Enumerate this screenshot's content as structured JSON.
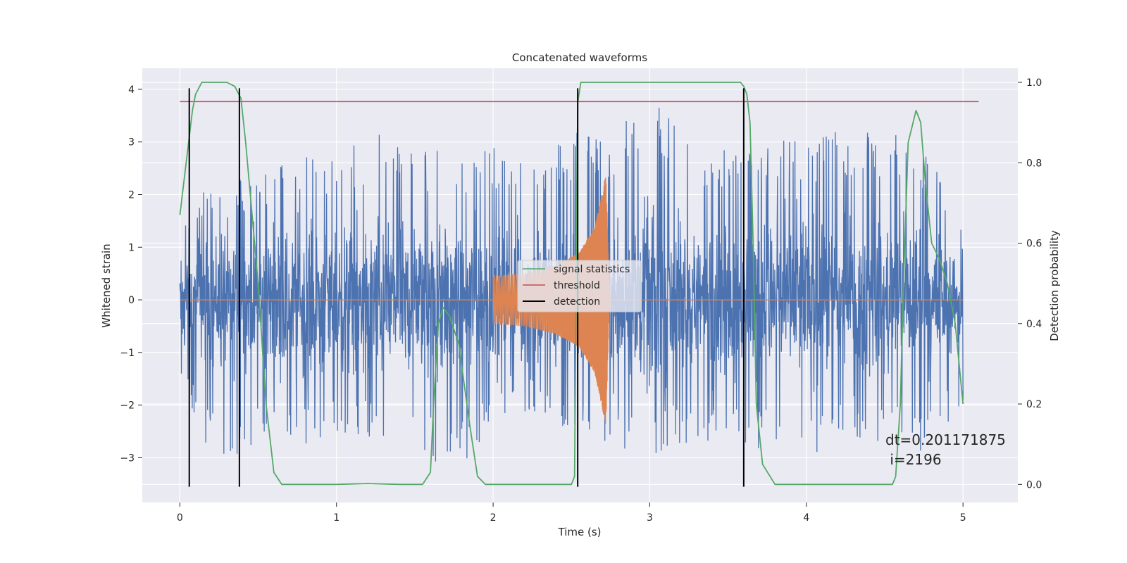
{
  "chart_data": {
    "type": "line",
    "title": "Concatenated waveforms",
    "xlabel": "Time (s)",
    "ylabel": "Whitened strain",
    "ylabel_right": "Detection probability",
    "xlim": [
      -0.24,
      5.35
    ],
    "ylim": [
      -3.85,
      4.4
    ],
    "ylim_right": [
      -0.045,
      1.035
    ],
    "x_ticks": [
      "0",
      "1",
      "2",
      "3",
      "4",
      "5"
    ],
    "y_ticks": [
      "4",
      "3",
      "2",
      "1",
      "0",
      "−1",
      "−2",
      "−3"
    ],
    "y_ticks_right": [
      "1.0",
      "0.8",
      "0.6",
      "0.4",
      "0.2",
      "0.0"
    ],
    "grid": true,
    "legend_position": "center",
    "legend": [
      {
        "label": "signal statistics",
        "color": "#55a868"
      },
      {
        "label": "threshold",
        "color": "#c44e52"
      },
      {
        "label": "detection",
        "color": "#000000"
      }
    ],
    "annotation": {
      "line1": "dt=0.201171875",
      "line2": " i=2196"
    },
    "colors": {
      "strain": "#4c72b0",
      "injection": "#dd8452",
      "statistic": "#55a868",
      "threshold": "#c44e52",
      "detection": "#000000",
      "plot_bg": "#eaeaf2",
      "grid": "#ffffff"
    },
    "series": [
      {
        "role": "strain",
        "axis": "left",
        "x_range": [
          0,
          5
        ],
        "envelope_x": [
          0,
          0.25,
          0.5,
          0.75,
          1.0,
          1.25,
          1.5,
          1.75,
          2.0,
          2.25,
          2.5,
          2.75,
          3.0,
          3.25,
          3.5,
          3.75,
          4.0,
          4.25,
          4.5,
          4.75,
          5.0
        ],
        "envelope_max": [
          1.5,
          2.4,
          2.3,
          3.0,
          2.7,
          3.3,
          3.0,
          2.8,
          3.0,
          2.8,
          3.2,
          3.0,
          4.0,
          3.0,
          2.9,
          3.0,
          3.2,
          3.2,
          3.2,
          3.0,
          1.3
        ],
        "envelope_min": [
          -1.6,
          -3.3,
          -2.9,
          -2.9,
          -2.6,
          -2.7,
          -2.7,
          -3.5,
          -2.3,
          -2.4,
          -2.4,
          -2.8,
          -3.1,
          -2.7,
          -2.7,
          -2.9,
          -3.3,
          -2.6,
          -2.8,
          -3.0,
          -2.0
        ]
      },
      {
        "role": "injection",
        "axis": "left",
        "x": [
          0,
          2.0,
          2.0,
          2.2,
          2.4,
          2.55,
          2.65,
          2.72,
          2.74,
          2.75,
          5.0
        ],
        "amplitude": [
          0,
          0,
          0.45,
          0.5,
          0.65,
          0.9,
          1.4,
          2.4,
          0.3,
          0,
          0
        ]
      },
      {
        "name": "signal statistics",
        "axis": "right",
        "x": [
          0,
          0.04,
          0.08,
          0.1,
          0.14,
          0.2,
          0.3,
          0.35,
          0.39,
          0.42,
          0.45,
          0.5,
          0.55,
          0.6,
          0.65,
          0.75,
          1.0,
          1.2,
          1.4,
          1.55,
          1.6,
          1.62,
          1.65,
          1.68,
          1.72,
          1.78,
          1.85,
          1.9,
          1.95,
          2.0,
          2.3,
          2.5,
          2.52,
          2.53,
          2.54,
          2.56,
          2.6,
          3.0,
          3.5,
          3.58,
          3.6,
          3.62,
          3.64,
          3.66,
          3.68,
          3.72,
          3.8,
          4.0,
          4.3,
          4.5,
          4.55,
          4.57,
          4.6,
          4.62,
          4.65,
          4.7,
          4.73,
          4.76,
          4.8,
          4.85,
          4.9,
          4.95,
          5.0
        ],
        "y": [
          0.67,
          0.8,
          0.93,
          0.97,
          1.0,
          1.0,
          1.0,
          0.99,
          0.96,
          0.85,
          0.72,
          0.5,
          0.2,
          0.03,
          0.0,
          0.0,
          0.0,
          0.002,
          0.0,
          0.0,
          0.03,
          0.2,
          0.4,
          0.44,
          0.42,
          0.35,
          0.15,
          0.02,
          0.0,
          0.0,
          0.0,
          0.0,
          0.02,
          0.5,
          0.95,
          1.0,
          1.0,
          1.0,
          1.0,
          1.0,
          0.99,
          0.97,
          0.9,
          0.6,
          0.2,
          0.05,
          0.0,
          0.0,
          0.0,
          0.0,
          0.0,
          0.02,
          0.2,
          0.5,
          0.85,
          0.93,
          0.9,
          0.75,
          0.6,
          0.56,
          0.5,
          0.4,
          0.2
        ]
      },
      {
        "name": "threshold",
        "axis": "right",
        "x": [
          0,
          5.1
        ],
        "y": [
          0.952,
          0.952
        ]
      },
      {
        "name": "detection",
        "axis": "left",
        "x": [
          0.06,
          0.38,
          2.54,
          3.6
        ],
        "y_range": [
          -3.55,
          4.02
        ]
      }
    ]
  }
}
